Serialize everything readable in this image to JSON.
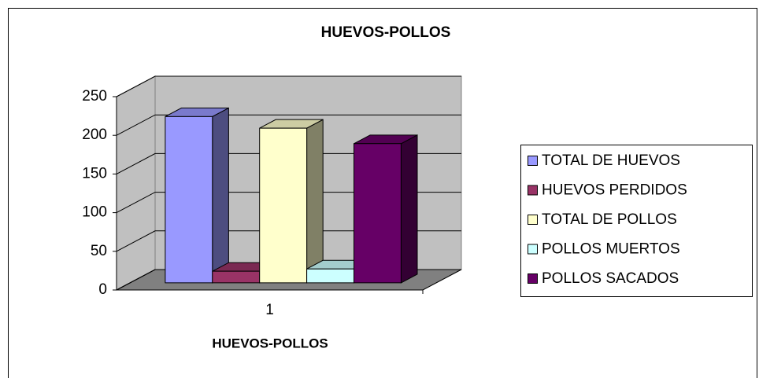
{
  "chart_data": {
    "type": "bar3d",
    "title": "HUEVOS-POLLOS",
    "x_label": "HUEVOS-POLLOS",
    "categories": [
      "1"
    ],
    "series": [
      {
        "name": "TOTAL DE HUEVOS",
        "color": "#9999ff",
        "values": [
          215
        ]
      },
      {
        "name": "HUEVOS PERDIDOS",
        "color": "#993366",
        "values": [
          15
        ]
      },
      {
        "name": "TOTAL DE POLLOS",
        "color": "#ffffcc",
        "values": [
          200
        ]
      },
      {
        "name": "POLLOS MUERTOS",
        "color": "#ccffff",
        "values": [
          18
        ]
      },
      {
        "name": "POLLOS SACADOS",
        "color": "#660066",
        "values": [
          180
        ]
      }
    ],
    "ylim": [
      0,
      250
    ],
    "yticks": [
      0,
      50,
      100,
      150,
      200,
      250
    ],
    "grid": true,
    "legend": "right"
  }
}
